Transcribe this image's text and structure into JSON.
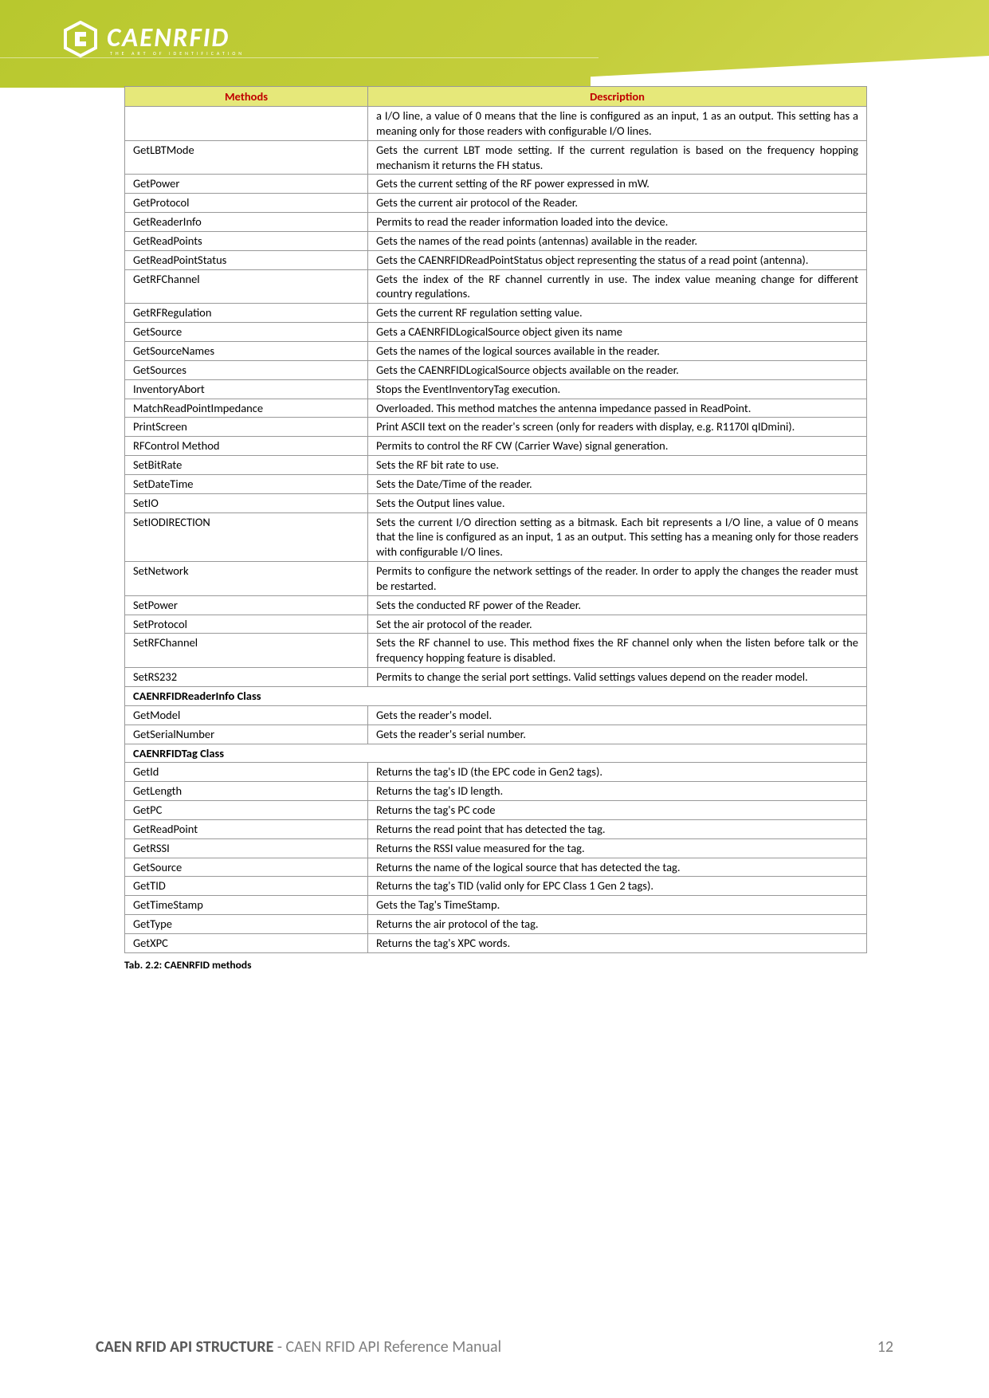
{
  "logo": {
    "main": "CAENRFID",
    "sub": "THE ART OF IDENTIFICATION"
  },
  "table": {
    "headers": [
      "Methods",
      "Description"
    ],
    "col_width_method": 305,
    "header_bg": "#e6e87a",
    "header_color": "#c00000",
    "border_color": "#999999",
    "rows": [
      {
        "m": "",
        "d": "a I/O line, a value of 0 means that the line is configured as an input, 1 as an output. This setting has a meaning only for those readers with configurable I/O lines.",
        "just": true
      },
      {
        "m": "GetLBTMode",
        "d": "Gets the current LBT mode setting. If the current regulation is based on the frequency hopping mechanism it returns the FH status.",
        "just": true
      },
      {
        "m": "GetPower",
        "d": "Gets the current setting of the RF power expressed in mW."
      },
      {
        "m": "GetProtocol",
        "d": "Gets the current air protocol of the Reader."
      },
      {
        "m": "GetReaderInfo",
        "d": "Permits to read the reader information loaded into the device."
      },
      {
        "m": "GetReadPoints",
        "d": "Gets the names of the read points (antennas) available in the reader."
      },
      {
        "m": "GetReadPointStatus",
        "d": "Gets the CAENRFIDReadPointStatus object representing the status of a read point (antenna).",
        "just": true
      },
      {
        "m": "GetRFChannel",
        "d": "Gets the index of the RF channel currently in use. The index value meaning change for different country regulations.",
        "just": true
      },
      {
        "m": "GetRFRegulation",
        "d": "Gets the current RF regulation setting value."
      },
      {
        "m": "GetSource",
        "d": "Gets a CAENRFIDLogicalSource object given its name"
      },
      {
        "m": "GetSourceNames",
        "d": "Gets the names of the logical sources available in the reader."
      },
      {
        "m": "GetSources",
        "d": "Gets the CAENRFIDLogicalSource objects available on the reader."
      },
      {
        "m": "InventoryAbort",
        "d": "Stops the EventInventoryTag execution."
      },
      {
        "m": "MatchReadPointImpedance",
        "d": "Overloaded. This method matches the antenna impedance passed in ReadPoint."
      },
      {
        "m": "PrintScreen",
        "d": "Print ASCII text on the reader's screen (only for readers with display, e.g. R1170I qIDmini).",
        "just": true
      },
      {
        "m": "RFControl Method",
        "d": "Permits to control the RF CW (Carrier Wave) signal generation."
      },
      {
        "m": "SetBitRate",
        "d": "Sets the RF bit rate to use."
      },
      {
        "m": "SetDateTime",
        "d": "Sets the Date/Time of the reader."
      },
      {
        "m": "SetIO",
        "d": "Sets the Output lines value."
      },
      {
        "m": "SetIODIRECTION",
        "d": "Sets the current I/O direction setting as a bitmask. Each bit represents a I/O line, a value of 0 means that the line is configured as an input, 1 as an output. This setting has a meaning only for those readers with configurable I/O lines.",
        "just": true
      },
      {
        "m": "SetNetwork",
        "d": "Permits to configure the network settings of the reader. In order to apply the changes the reader must be restarted.",
        "just": true
      },
      {
        "m": "SetPower",
        "d": "Sets the conducted RF power of the Reader."
      },
      {
        "m": "SetProtocol",
        "d": "Set the air protocol of the reader."
      },
      {
        "m": "SetRFChannel",
        "d": "Sets the RF channel to use. This method fixes the RF channel only when the listen before talk or the frequency hopping feature is disabled.",
        "just": true
      },
      {
        "m": "SetRS232",
        "d": "Permits to change the serial port settings. Valid settings values depend on the reader model.",
        "just": true
      },
      {
        "section": true,
        "m": "CAENRFIDReaderInfo Class",
        "d": ""
      },
      {
        "m": "GetModel",
        "d": "Gets the reader's model."
      },
      {
        "m": "GetSerialNumber",
        "d": "Gets the reader's serial number."
      },
      {
        "section": true,
        "m": "CAENRFIDTag Class",
        "d": ""
      },
      {
        "m": "GetId",
        "d": "Returns the tag's ID (the EPC code in Gen2 tags)."
      },
      {
        "m": "GetLength",
        "d": "Returns the tag's ID length."
      },
      {
        "m": "GetPC",
        "d": "Returns the tag's PC code"
      },
      {
        "m": "GetReadPoint",
        "d": "Returns the read point that has detected the tag."
      },
      {
        "m": "GetRSSI",
        "d": "Returns the RSSI value measured for the tag."
      },
      {
        "m": "GetSource",
        "d": "Returns the name of the logical source that has detected the tag."
      },
      {
        "m": "GetTID",
        "d": "Returns the tag's TID (valid only for EPC Class 1 Gen 2 tags)."
      },
      {
        "m": "GetTimeStamp",
        "d": "Gets the Tag's TimeStamp."
      },
      {
        "m": "GetType",
        "d": "Returns the air protocol of the tag."
      },
      {
        "m": "GetXPC",
        "d": "Returns the tag's XPC words."
      }
    ]
  },
  "caption": "Tab. 2.2: CAENRFID methods",
  "footer": {
    "title_bold": "CAEN RFID API STRUCTURE",
    "title_rest": " - CAEN RFID API Reference Manual",
    "page": "12"
  }
}
